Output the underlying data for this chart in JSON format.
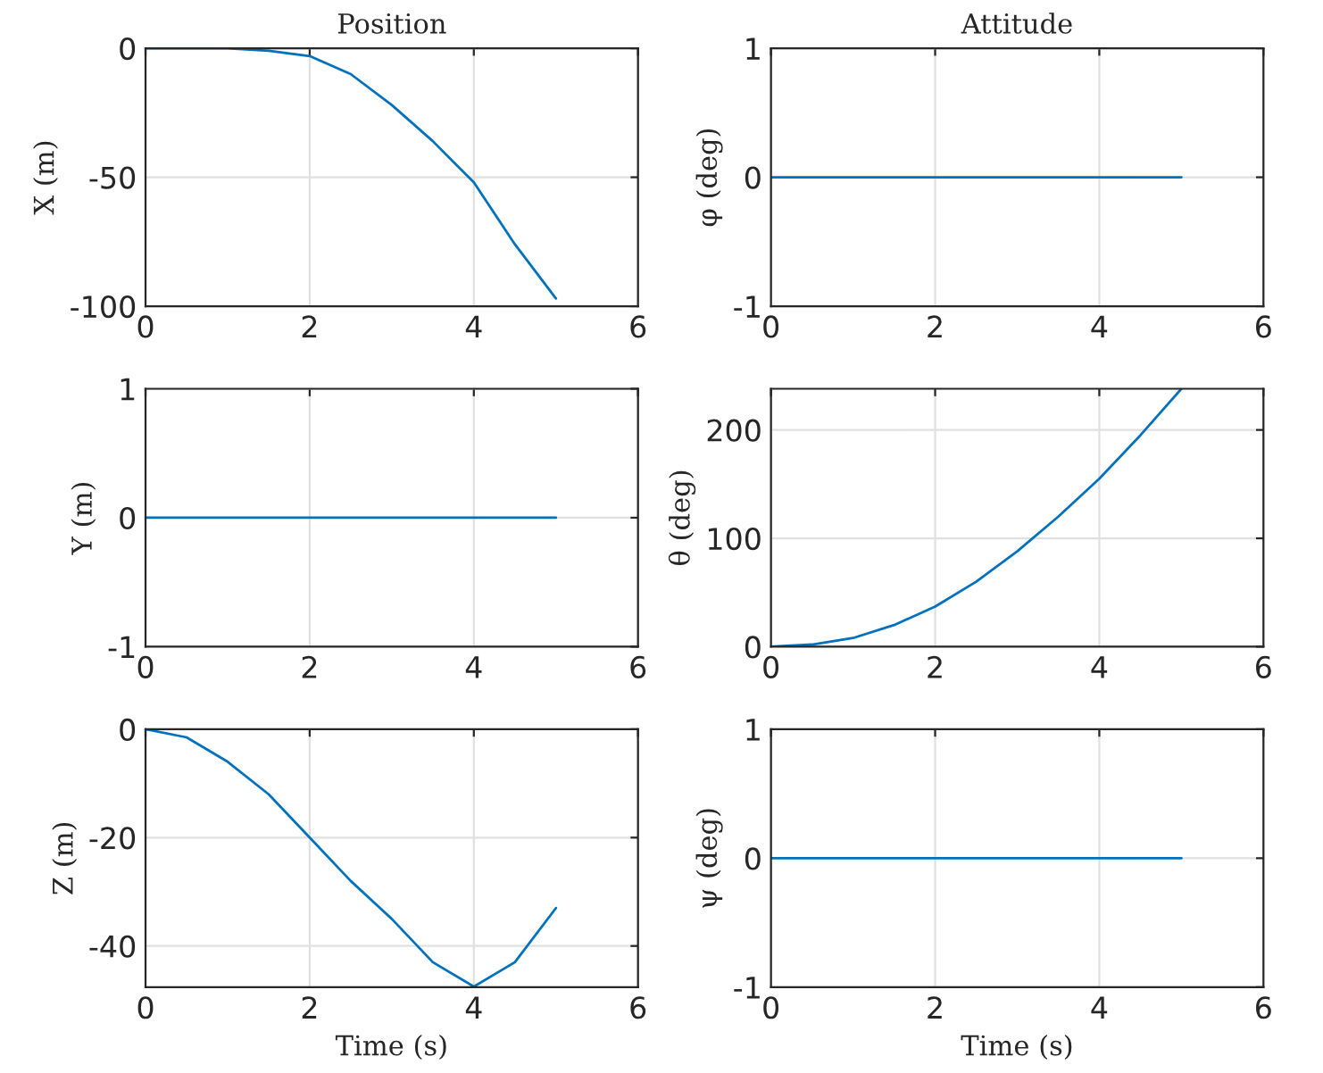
{
  "chart_data": [
    {
      "type": "line",
      "title": "Position",
      "ylabel": "X (m)",
      "x": [
        0,
        0.5,
        1,
        1.5,
        2,
        2.5,
        3,
        3.5,
        4,
        4.5,
        5
      ],
      "series": [
        {
          "color": "#0072bd",
          "values": [
            0,
            0,
            0,
            -1,
            -3,
            -10,
            -22,
            -36,
            -52,
            -76,
            -97
          ]
        }
      ],
      "xlim": [
        0,
        6
      ],
      "xticks": [
        0,
        2,
        4,
        6
      ],
      "ylim": [
        -100,
        0
      ],
      "yticks": [
        -100,
        -50,
        0
      ],
      "grid": true
    },
    {
      "type": "line",
      "title": "Attitude",
      "ylabel": "φ (deg)",
      "x": [
        0,
        5
      ],
      "series": [
        {
          "color": "#0072bd",
          "values": [
            0,
            0
          ]
        }
      ],
      "xlim": [
        0,
        6
      ],
      "xticks": [
        0,
        2,
        4,
        6
      ],
      "ylim": [
        -1,
        1
      ],
      "yticks": [
        -1,
        0,
        1
      ],
      "grid": true
    },
    {
      "type": "line",
      "ylabel": "Y (m)",
      "x": [
        0,
        5
      ],
      "series": [
        {
          "color": "#0072bd",
          "values": [
            0,
            0
          ]
        }
      ],
      "xlim": [
        0,
        6
      ],
      "xticks": [
        0,
        2,
        4,
        6
      ],
      "ylim": [
        -1,
        1
      ],
      "yticks": [
        -1,
        0,
        1
      ],
      "grid": true
    },
    {
      "type": "line",
      "ylabel": "θ (deg)",
      "x": [
        0,
        0.5,
        1,
        1.5,
        2,
        2.5,
        3,
        3.5,
        4,
        4.5,
        5
      ],
      "series": [
        {
          "color": "#0072bd",
          "values": [
            0,
            2,
            8,
            20,
            37,
            60,
            88,
            120,
            155,
            195,
            238
          ]
        }
      ],
      "xlim": [
        0,
        6
      ],
      "xticks": [
        0,
        2,
        4,
        6
      ],
      "ylim": [
        0,
        238
      ],
      "yticks": [
        0,
        100,
        200
      ],
      "grid": true
    },
    {
      "type": "line",
      "xlabel": "Time (s)",
      "ylabel": "Z (m)",
      "x": [
        0,
        0.5,
        1,
        1.5,
        2,
        2.5,
        3,
        3.5,
        4,
        4.5,
        5
      ],
      "series": [
        {
          "color": "#0072bd",
          "values": [
            0,
            -1.5,
            -6,
            -12,
            -20,
            -28,
            -35,
            -43,
            -47.5,
            -43,
            -33
          ]
        }
      ],
      "xlim": [
        0,
        6
      ],
      "xticks": [
        0,
        2,
        4,
        6
      ],
      "ylim": [
        -47.6,
        0
      ],
      "yticks": [
        -40,
        -20,
        0
      ],
      "grid": true
    },
    {
      "type": "line",
      "xlabel": "Time (s)",
      "ylabel": "ψ (deg)",
      "x": [
        0,
        5
      ],
      "series": [
        {
          "color": "#0072bd",
          "values": [
            0,
            0
          ]
        }
      ],
      "xlim": [
        0,
        6
      ],
      "xticks": [
        0,
        2,
        4,
        6
      ],
      "ylim": [
        -1,
        1
      ],
      "yticks": [
        -1,
        0,
        1
      ],
      "grid": true
    }
  ]
}
